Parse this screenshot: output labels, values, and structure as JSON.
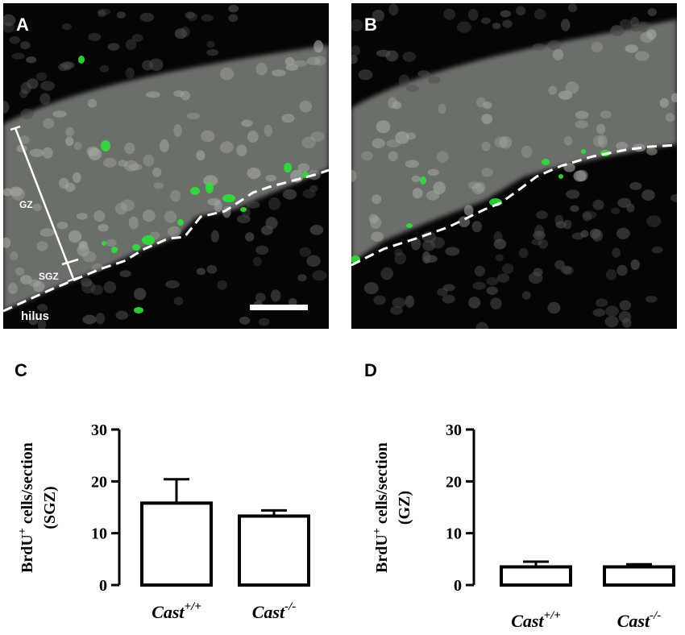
{
  "panels": {
    "A": {
      "letter": "A",
      "labels": {
        "gz": "GZ",
        "sgz": "SGZ",
        "hilus": "hilus"
      }
    },
    "B": {
      "letter": "B"
    },
    "C": {
      "letter": "C"
    },
    "D": {
      "letter": "D"
    }
  },
  "colors": {
    "bar_fill": "#ffffff",
    "bar_stroke": "#000000",
    "brdu_green": "#2fe03a",
    "nuclei_gray": "#8e938c",
    "annotation": "#ffffff"
  },
  "chart_data": [
    {
      "type": "bar",
      "panel": "C",
      "categories": [
        "Cast",
        "Cast"
      ],
      "category_superscripts": [
        "+/+",
        "-/-"
      ],
      "values": [
        15.8,
        13.3
      ],
      "error": [
        4.6,
        1.1
      ],
      "ylabel_lines": [
        "BrdU",
        "+",
        " cells/section",
        "(SGZ)"
      ],
      "ylim": [
        0,
        30
      ],
      "yticks": [
        0,
        10,
        20,
        30
      ],
      "grid": false
    },
    {
      "type": "bar",
      "panel": "D",
      "categories": [
        "Cast",
        "Cast"
      ],
      "category_superscripts": [
        "+/+",
        "-/-"
      ],
      "values": [
        3.5,
        3.5
      ],
      "error": [
        1.0,
        0.5
      ],
      "ylabel_lines": [
        "BrdU",
        "+",
        " cells/section",
        "(GZ)"
      ],
      "ylim": [
        0,
        30
      ],
      "yticks": [
        0,
        10,
        20,
        30
      ],
      "grid": false
    }
  ]
}
